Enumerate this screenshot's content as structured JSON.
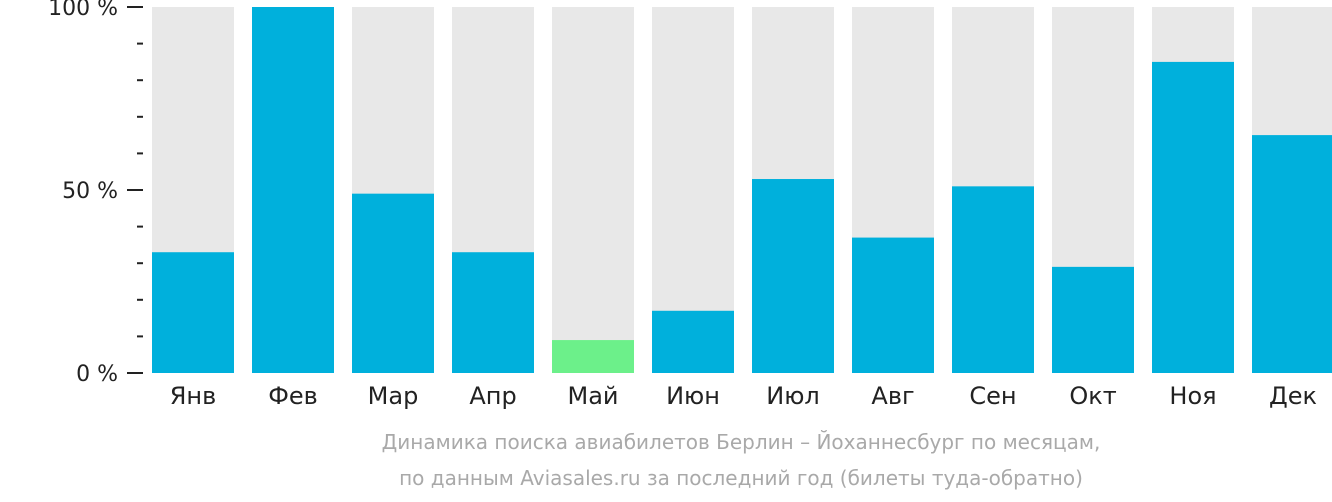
{
  "chart_data": {
    "type": "bar",
    "categories": [
      "Янв",
      "Фев",
      "Мар",
      "Апр",
      "Май",
      "Июн",
      "Июл",
      "Авг",
      "Сен",
      "Окт",
      "Ноя",
      "Дек"
    ],
    "values": [
      33,
      100,
      49,
      33,
      9,
      17,
      53,
      37,
      51,
      29,
      85,
      65
    ],
    "highlight_index": 4,
    "ylim": [
      0,
      100
    ],
    "y_ticks": [
      "0 %",
      "50 %",
      "100 %"
    ],
    "colors": {
      "bar": "#00b0dc",
      "highlight": "#6cf08a",
      "track": "#e8e8e8",
      "axis": "#222222"
    },
    "caption_line1": "Динамика поиска авиабилетов Берлин – Йоханнесбург по месяцам,",
    "caption_line2": "по данным Aviasales.ru за последний год (билеты туда-обратно)"
  }
}
